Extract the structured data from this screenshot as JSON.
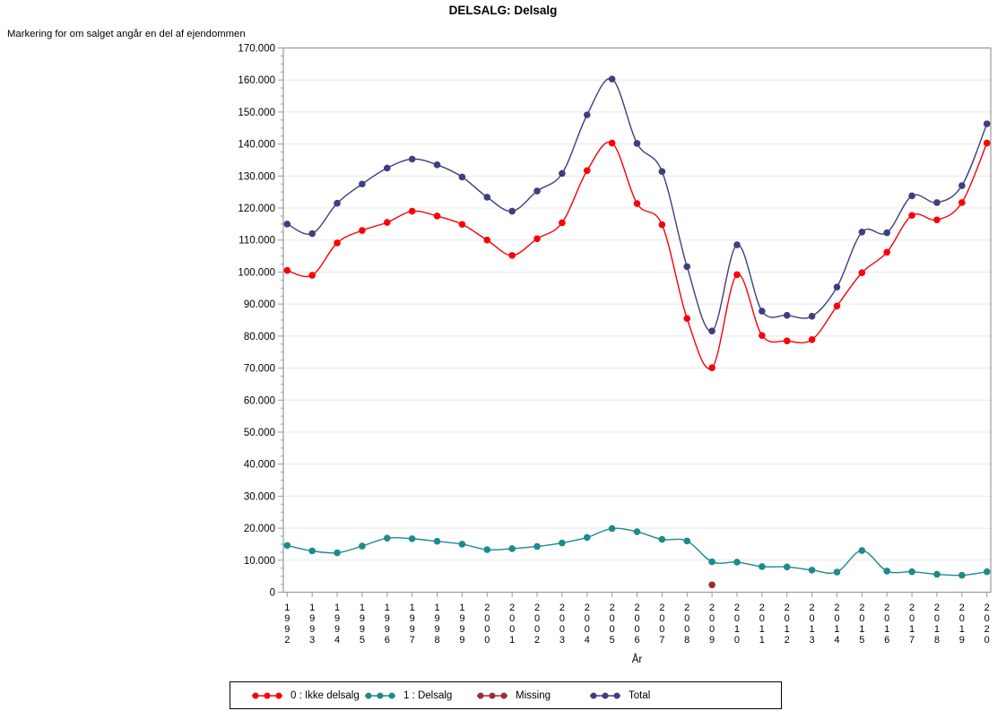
{
  "title": "DELSALG: Delsalg",
  "y_axis_label": "Markering for om salget angår en del af ejendommen",
  "x_axis_label": "År",
  "colors": {
    "ikke_delsalg": "#fb0006",
    "delsalg": "#1e8a8c",
    "missing": "#9e2b3a",
    "total": "#3e3e82",
    "gridline": "#e8e8e8",
    "axis": "#9a9a9a"
  },
  "legend": {
    "items": [
      {
        "label": "0 : Ikke delsalg"
      },
      {
        "label": "1 : Delsalg"
      },
      {
        "label": "Missing"
      },
      {
        "label": "Total"
      }
    ]
  },
  "chart_data": {
    "type": "line",
    "title": "DELSALG: Delsalg",
    "ylabel": "Markering for om salget angår en del af ejendommen",
    "xlabel": "År",
    "x": [
      1992,
      1993,
      1994,
      1995,
      1996,
      1997,
      1998,
      1999,
      2000,
      2001,
      2002,
      2003,
      2004,
      2005,
      2006,
      2007,
      2008,
      2009,
      2010,
      2011,
      2012,
      2013,
      2014,
      2015,
      2016,
      2017,
      2018,
      2019,
      2020
    ],
    "ylim": [
      0,
      170000
    ],
    "ytick_step": 10000,
    "ytick_minor_step": 2500,
    "grid": "horizontal",
    "legend_position": "bottom",
    "line_style": "smooth-spline",
    "marker": "filled-circle",
    "series": [
      {
        "id": "ikke-delsalg",
        "name": "0 : Ikke delsalg",
        "color": "#fb0006",
        "values": [
          100500,
          99000,
          109100,
          113000,
          115500,
          119000,
          117500,
          114900,
          110000,
          105200,
          110400,
          115400,
          131700,
          140300,
          121400,
          114800,
          85500,
          70100,
          99200,
          80200,
          78500,
          78900,
          89400,
          99800,
          106200,
          117700,
          116300,
          121700,
          140300
        ]
      },
      {
        "id": "delsalg",
        "name": "1 : Delsalg",
        "color": "#1e8a8c",
        "values": [
          14600,
          12900,
          12300,
          14400,
          16900,
          16700,
          15900,
          15000,
          13300,
          13600,
          14300,
          15400,
          17100,
          19900,
          18900,
          16500,
          16000,
          9500,
          9400,
          8000,
          7900,
          6900,
          6300,
          13000,
          6600,
          6400,
          5600,
          5300,
          6400
        ]
      },
      {
        "id": "missing",
        "name": "Missing",
        "color": "#9e2b3a",
        "values": [
          null,
          null,
          null,
          null,
          null,
          null,
          null,
          null,
          null,
          null,
          null,
          null,
          null,
          null,
          null,
          null,
          null,
          2300,
          null,
          null,
          null,
          null,
          null,
          null,
          null,
          null,
          null,
          null,
          null
        ]
      },
      {
        "id": "total",
        "name": "Total",
        "color": "#3e3e82",
        "values": [
          115000,
          112000,
          121500,
          127500,
          132500,
          135300,
          133500,
          129700,
          123400,
          119000,
          125300,
          130800,
          149100,
          160300,
          140200,
          131400,
          101700,
          81600,
          108500,
          87800,
          86500,
          86200,
          95300,
          112500,
          112300,
          123800,
          121700,
          127000,
          146300
        ]
      }
    ]
  }
}
